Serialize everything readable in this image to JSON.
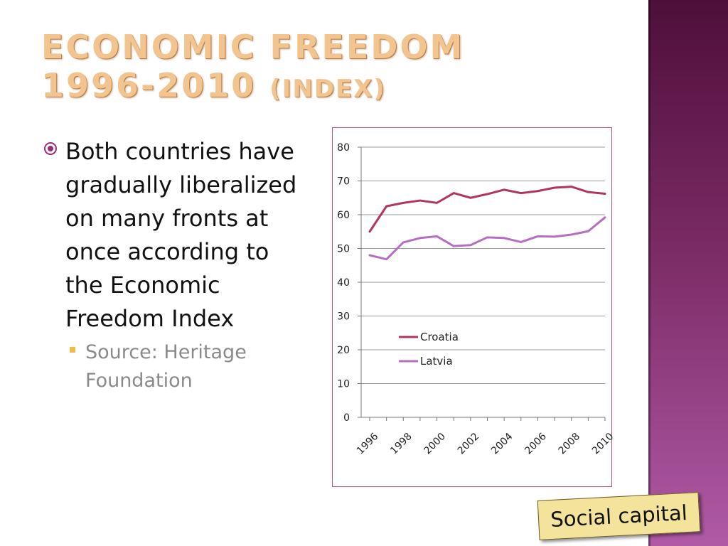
{
  "slide": {
    "title_line1": "ECONOMIC FREEDOM",
    "title_line2": "1996-2010",
    "title_paren": "(INDEX)",
    "bullet_main": "Both countries have gradually liberalized on many fronts at once according to the Economic Freedom Index",
    "bullet_sub": "Source: Heritage Foundation",
    "tag": "Social capital"
  },
  "colors": {
    "croatia": "#b03560",
    "latvia": "#b46fc0",
    "grid": "#9a9a9a",
    "title": "#f2c48f",
    "side_band": "#7a2a64",
    "chart_border": "#b8527f",
    "tag_bg": "#f4e49b"
  },
  "chart_data": {
    "type": "line",
    "title": "",
    "xlabel": "",
    "ylabel": "",
    "x": [
      1996,
      1997,
      1998,
      1999,
      2000,
      2001,
      2002,
      2003,
      2004,
      2005,
      2006,
      2007,
      2008,
      2009,
      2010
    ],
    "x_tick_labels": [
      "1996",
      "1998",
      "2000",
      "2002",
      "2004",
      "2006",
      "2008",
      "2010"
    ],
    "ylim": [
      0,
      80
    ],
    "y_ticks": [
      0,
      10,
      20,
      30,
      40,
      50,
      60,
      70,
      80
    ],
    "grid": true,
    "legend": "center-left",
    "series": [
      {
        "name": "Croatia",
        "values": [
          55.0,
          62.5,
          63.5,
          64.2,
          63.5,
          66.4,
          65.0,
          66.1,
          67.4,
          66.4,
          67.0,
          68.0,
          68.3,
          66.7,
          66.2
        ]
      },
      {
        "name": "Latvia",
        "values": [
          48.0,
          46.8,
          51.8,
          53.1,
          53.6,
          50.7,
          51.0,
          53.3,
          53.1,
          51.9,
          53.6,
          53.5,
          54.1,
          55.1,
          59.2
        ]
      }
    ]
  }
}
